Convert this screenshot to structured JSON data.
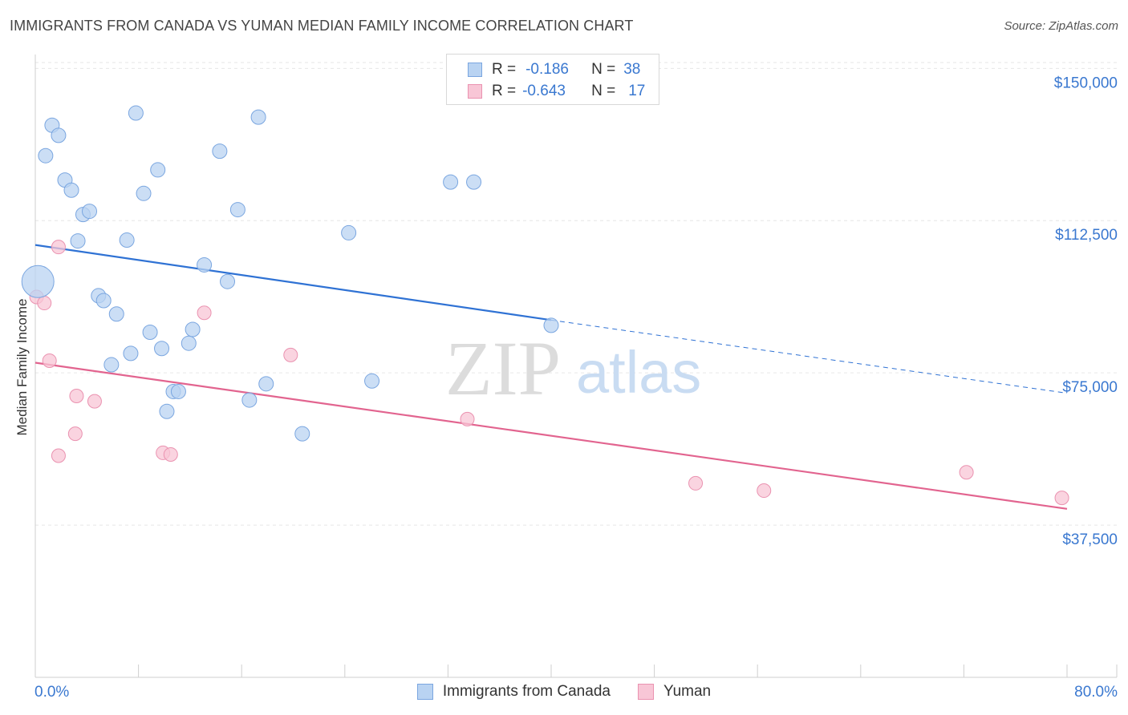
{
  "header": {
    "title": "IMMIGRANTS FROM CANADA VS YUMAN MEDIAN FAMILY INCOME CORRELATION CHART",
    "source": "Source: ZipAtlas.com"
  },
  "watermark": {
    "zip": "ZIP",
    "atlas": "atlas"
  },
  "legend": {
    "rows": [
      {
        "r_label": "R =",
        "r_value": "-0.186",
        "n_label": "N =",
        "n_value": "38"
      },
      {
        "r_label": "R =",
        "r_value": "-0.643",
        "n_label": "N =",
        "n_value": "17"
      }
    ]
  },
  "colors": {
    "blue_fill": "#b9d3f2",
    "blue_stroke": "#7aa6e0",
    "blue_line": "#2f72d4",
    "pink_fill": "#f8c6d6",
    "pink_stroke": "#ea92b0",
    "pink_line": "#e2648f",
    "axis_text": "#3a78d0",
    "grid": "#e6e6e6"
  },
  "chart_data": {
    "type": "scatter",
    "title": "IMMIGRANTS FROM CANADA VS YUMAN MEDIAN FAMILY INCOME CORRELATION CHART",
    "xlabel": "",
    "ylabel": "Median Family Income",
    "xlim": [
      0,
      80
    ],
    "ylim": [
      0,
      155000
    ],
    "x_tick_labels": [
      "0.0%",
      "80.0%"
    ],
    "y_ticks": [
      37500,
      75000,
      112500,
      150000
    ],
    "y_tick_labels": [
      "$37,500",
      "$75,000",
      "$112,500",
      "$150,000"
    ],
    "grid": true,
    "legend_position": "top-center",
    "series": [
      {
        "name": "Immigrants from Canada",
        "color": "#b9d3f2",
        "trend": {
          "x": [
            0,
            40
          ],
          "y": [
            106500,
            88000
          ],
          "dashed_to_x": 80,
          "dashed_to_y": 70000
        },
        "points": [
          {
            "x": 0.2,
            "y": 97500,
            "big": true
          },
          {
            "x": 0.8,
            "y": 128500
          },
          {
            "x": 1.3,
            "y": 136000
          },
          {
            "x": 1.8,
            "y": 133500
          },
          {
            "x": 2.3,
            "y": 122500
          },
          {
            "x": 2.8,
            "y": 120000
          },
          {
            "x": 3.3,
            "y": 107500
          },
          {
            "x": 3.7,
            "y": 114000
          },
          {
            "x": 4.2,
            "y": 114800
          },
          {
            "x": 4.9,
            "y": 94000
          },
          {
            "x": 5.3,
            "y": 92800
          },
          {
            "x": 5.9,
            "y": 77000
          },
          {
            "x": 6.3,
            "y": 89500
          },
          {
            "x": 7.1,
            "y": 107700
          },
          {
            "x": 7.4,
            "y": 79800
          },
          {
            "x": 7.8,
            "y": 139000
          },
          {
            "x": 8.4,
            "y": 119200
          },
          {
            "x": 8.9,
            "y": 85000
          },
          {
            "x": 9.5,
            "y": 125000
          },
          {
            "x": 9.8,
            "y": 81000
          },
          {
            "x": 10.2,
            "y": 65500
          },
          {
            "x": 10.7,
            "y": 70400
          },
          {
            "x": 11.1,
            "y": 70400
          },
          {
            "x": 11.9,
            "y": 82300
          },
          {
            "x": 12.2,
            "y": 85700
          },
          {
            "x": 13.1,
            "y": 101600
          },
          {
            "x": 14.3,
            "y": 129600
          },
          {
            "x": 14.9,
            "y": 97500
          },
          {
            "x": 15.7,
            "y": 115200
          },
          {
            "x": 16.6,
            "y": 68300
          },
          {
            "x": 17.3,
            "y": 138000
          },
          {
            "x": 17.9,
            "y": 72300
          },
          {
            "x": 20.7,
            "y": 60000
          },
          {
            "x": 24.3,
            "y": 109500
          },
          {
            "x": 26.1,
            "y": 73000
          },
          {
            "x": 32.2,
            "y": 122000
          },
          {
            "x": 34.0,
            "y": 122000
          },
          {
            "x": 40.0,
            "y": 86700
          }
        ]
      },
      {
        "name": "Yuman",
        "color": "#f8c6d6",
        "trend": {
          "x": [
            0,
            80
          ],
          "y": [
            77500,
            41500
          ]
        },
        "points": [
          {
            "x": 0.1,
            "y": 93700
          },
          {
            "x": 0.7,
            "y": 92200
          },
          {
            "x": 1.1,
            "y": 78000
          },
          {
            "x": 1.8,
            "y": 54600
          },
          {
            "x": 1.8,
            "y": 106000
          },
          {
            "x": 3.2,
            "y": 69300
          },
          {
            "x": 3.1,
            "y": 60000
          },
          {
            "x": 4.6,
            "y": 68000
          },
          {
            "x": 9.9,
            "y": 55300
          },
          {
            "x": 10.5,
            "y": 54900
          },
          {
            "x": 13.1,
            "y": 89800
          },
          {
            "x": 19.8,
            "y": 79400
          },
          {
            "x": 33.5,
            "y": 63600
          },
          {
            "x": 51.2,
            "y": 47800
          },
          {
            "x": 56.5,
            "y": 46000
          },
          {
            "x": 72.2,
            "y": 50500
          },
          {
            "x": 79.6,
            "y": 44200
          }
        ]
      }
    ]
  },
  "bottom_legend": {
    "items": [
      {
        "label": "Immigrants from Canada"
      },
      {
        "label": "Yuman"
      }
    ]
  }
}
